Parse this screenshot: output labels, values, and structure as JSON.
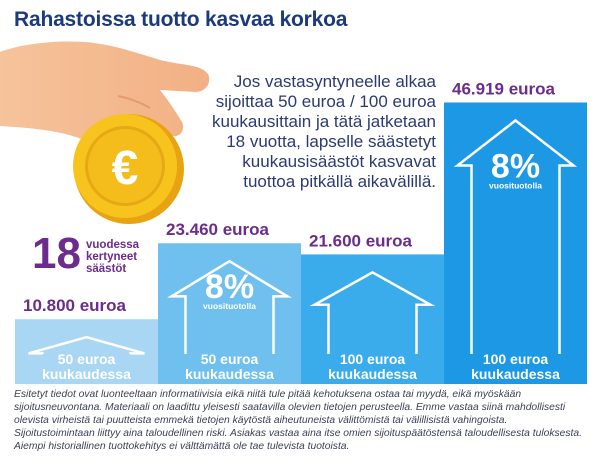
{
  "title": "Rahastoissa tuotto kasvaa korkoa",
  "intro": "Jos vastasyntyneelle alkaa sijoittaa 50 euroa / 100 euroa kuukausittain ja tätä jatketaan 18 vuotta, lapselle säästetyt kuukausisäästöt kasvavat tuottoa pitkällä aikavälillä.",
  "kpi": {
    "number": "18",
    "label": "vuodessa kertyneet säästöt"
  },
  "coin_symbol": "€",
  "return_label_pct": "8%",
  "return_label_text": "vuosituotolla",
  "chart_data": {
    "type": "bar",
    "title": "Rahastoissa tuotto kasvaa korkoa",
    "unit": "euroa",
    "categories": [
      "50 euroa kuukaudessa",
      "50 euroa kuukaudessa",
      "100 euroa kuukaudessa",
      "100 euroa kuukaudessa"
    ],
    "values": [
      10800,
      23460,
      21600,
      46919
    ],
    "value_labels": [
      "10.800 euroa",
      "23.460 euroa",
      "21.600 euroa",
      "46.919 euroa"
    ],
    "category_lines": [
      [
        "50 euroa",
        "kuukaudessa"
      ],
      [
        "50 euroa",
        "kuukaudessa"
      ],
      [
        "100 euroa",
        "kuukaudessa"
      ],
      [
        "100 euroa",
        "kuukaudessa"
      ]
    ],
    "return_annotation": [
      false,
      true,
      false,
      true
    ],
    "ylim": [
      0,
      50000
    ],
    "colors": {
      "bar1": "#a9d7f3",
      "bar2": "#6fc0ee",
      "bar3": "#3aacec",
      "bar4": "#1d98e4",
      "value_label": "#6c2c8c",
      "category_label": "#ffffff"
    }
  },
  "disclaimer": "Esitetyt tiedot ovat luonteeltaan informatiivisia eikä niitä tule pitää kehotuksena ostaa tai myydä, eikä myöskään sijoitusneuvontana. Materiaali on laadittu yleisesti saatavilla olevien tietojen perusteella. Emme vastaa siinä mahdollisesti olevista virheistä tai puutteista emmekä tietojen käytöstä aiheutuneista välittömistä tai välillisistä vahingoista. Sijoitustoimintaan liittyy aina taloudellinen riski. Asiakas vastaa aina itse omien sijoituspäätöstensä taloudellisesta tuloksesta. Aiempi historiallinen tuottokehitys ei välttämättä ole tae tulevista tuotoista."
}
